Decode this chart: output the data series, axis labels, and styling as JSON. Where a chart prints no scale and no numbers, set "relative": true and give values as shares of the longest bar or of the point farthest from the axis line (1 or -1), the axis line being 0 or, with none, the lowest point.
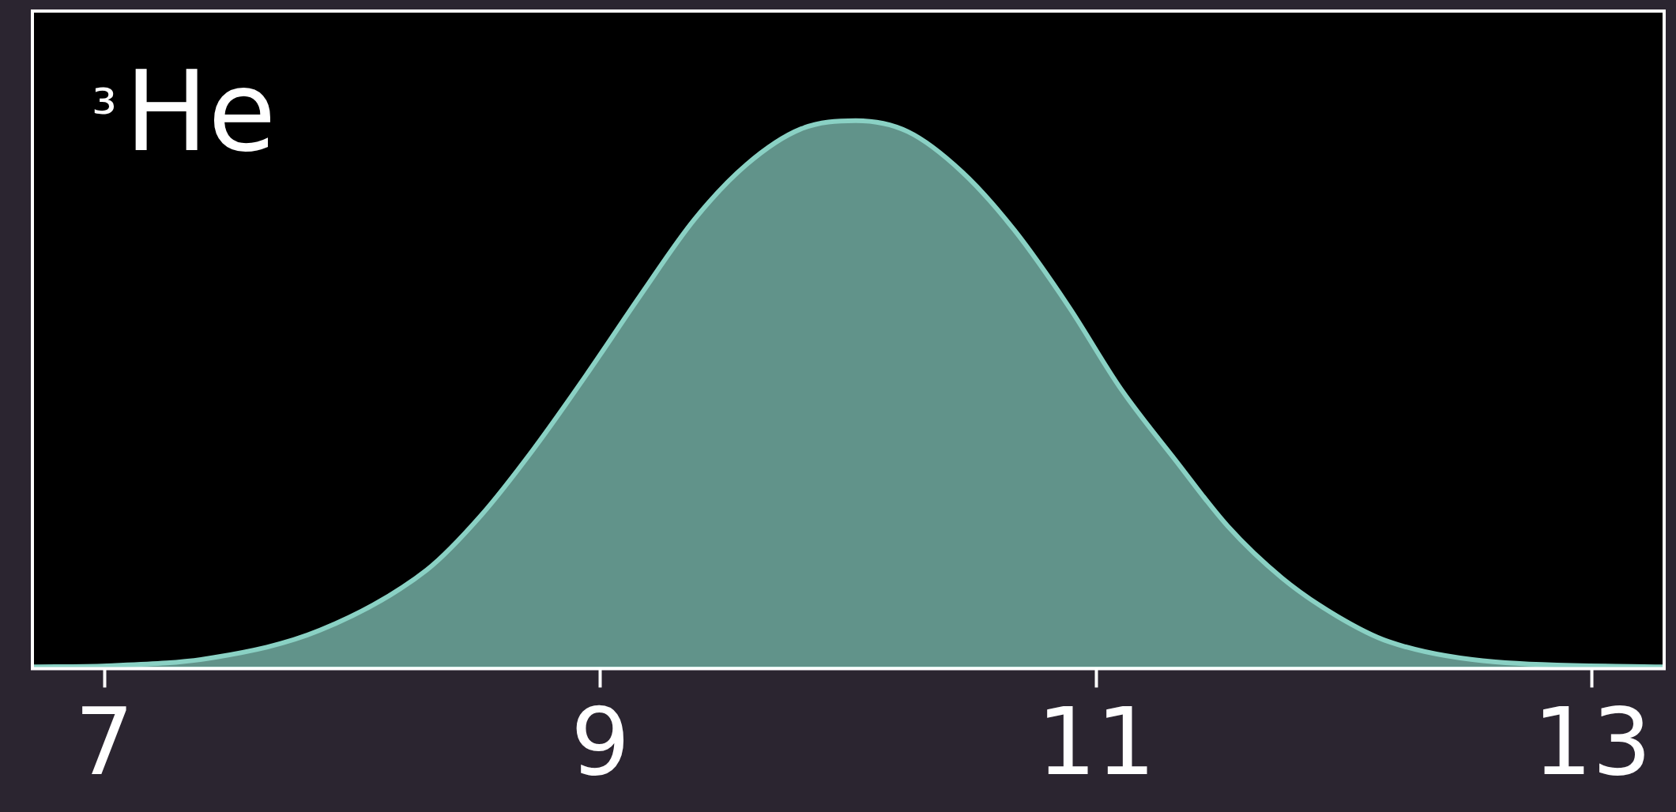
{
  "chart_data": {
    "type": "area",
    "title": "³He",
    "relative": true,
    "x": [
      6.71,
      7.01,
      7.44,
      7.87,
      8.3,
      8.52,
      8.73,
      8.95,
      9.16,
      9.38,
      9.59,
      9.81,
      10.03,
      10.24,
      10.46,
      10.67,
      10.89,
      11.1,
      11.32,
      11.53,
      11.75,
      11.97,
      12.18,
      12.61,
      13.29
    ],
    "series": [
      {
        "color": "#8ad1c4",
        "values": [
          0.003,
          0.005,
          0.02,
          0.07,
          0.18,
          0.28,
          0.4,
          0.54,
          0.68,
          0.82,
          0.92,
          0.985,
          1,
          0.98,
          0.906,
          0.8,
          0.66,
          0.51,
          0.38,
          0.26,
          0.165,
          0.096,
          0.049,
          0.012,
          0.003
        ]
      }
    ],
    "xlim": [
      6.71,
      13.29
    ],
    "xticks": [
      7,
      9,
      11,
      13
    ],
    "grid": false,
    "legend": false
  }
}
